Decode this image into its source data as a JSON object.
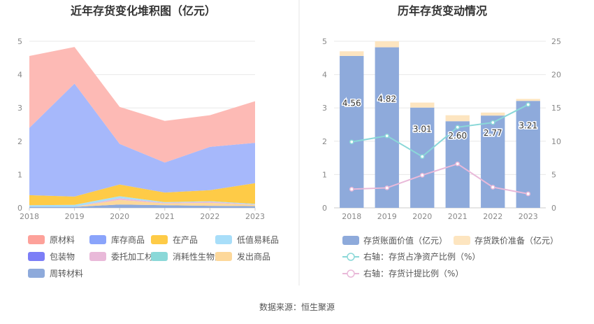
{
  "source_label": "数据来源：恒生聚源",
  "colors": {
    "axis_text": "#888888",
    "grid": "#e8e8e8",
    "divider": "#e5e5e5",
    "title": "#333333",
    "legend_text": "#555555"
  },
  "chart_data": [
    {
      "type": "area",
      "stacked": true,
      "title": "近年存货变化堆积图（亿元）",
      "xlabel": "",
      "ylabel": "",
      "x": [
        "2018",
        "2019",
        "2020",
        "2021",
        "2022",
        "2023"
      ],
      "ylim": [
        0,
        5
      ],
      "yticks": [
        "0",
        "1",
        "2",
        "3",
        "4",
        "5"
      ],
      "grid": true,
      "legend_position": "bottom",
      "series": [
        {
          "name": "周转材料",
          "color": "#8eaadb",
          "values": [
            0.03,
            0.03,
            0.1,
            0.08,
            0.06,
            0.05
          ]
        },
        {
          "name": "发出商品",
          "color": "#fdd89a",
          "values": [
            0.0,
            0.0,
            0.14,
            0.05,
            0.09,
            0.04
          ]
        },
        {
          "name": "消耗性生物资产",
          "color": "#8ad8d8",
          "values": [
            0,
            0,
            0,
            0,
            0,
            0
          ]
        },
        {
          "name": "委托加工材料",
          "color": "#e9b9d9",
          "values": [
            0.0,
            0.0,
            0.05,
            0.02,
            0.03,
            0.01
          ]
        },
        {
          "name": "包装物",
          "color": "#7c7ef7",
          "values": [
            0,
            0,
            0,
            0,
            0,
            0
          ]
        },
        {
          "name": "低值易耗品",
          "color": "#a8def9",
          "values": [
            0.05,
            0.06,
            0.06,
            0.02,
            0.02,
            0.02
          ]
        },
        {
          "name": "在产品",
          "color": "#fecb47",
          "values": [
            0.3,
            0.25,
            0.35,
            0.29,
            0.33,
            0.62
          ]
        },
        {
          "name": "库存商品",
          "color": "#a6b8fb",
          "values": [
            2.02,
            3.39,
            1.22,
            0.9,
            1.3,
            1.21
          ]
        },
        {
          "name": "原材料",
          "color": "#fdbab5",
          "values": [
            2.16,
            1.1,
            1.11,
            1.25,
            0.95,
            1.25
          ]
        }
      ],
      "legend": [
        {
          "name": "原材料",
          "color": "#fda19a"
        },
        {
          "name": "库存商品",
          "color": "#8aa4fb"
        },
        {
          "name": "在产品",
          "color": "#fecb47"
        },
        {
          "name": "低值易耗品",
          "color": "#a8def9"
        },
        {
          "name": "包装物",
          "color": "#7c7ef7"
        },
        {
          "name": "委托加工材料",
          "color": "#e9b9d9"
        },
        {
          "name": "消耗性生物资产",
          "color": "#8ad8d8"
        },
        {
          "name": "发出商品",
          "color": "#fdd89a"
        },
        {
          "name": "周转材料",
          "color": "#8eaadb"
        }
      ]
    },
    {
      "type": "bar",
      "stacked": true,
      "title": "历年存货变动情况",
      "xlabel": "",
      "ylabel": "",
      "categories": [
        "2018",
        "2019",
        "2020",
        "2021",
        "2022",
        "2023"
      ],
      "ylim": [
        0,
        5
      ],
      "yticks": [
        "0",
        "1",
        "2",
        "3",
        "4",
        "5"
      ],
      "y2lim": [
        0,
        25
      ],
      "y2ticks": [
        "0",
        "5",
        "10",
        "15",
        "20",
        "25"
      ],
      "grid": true,
      "legend_position": "bottom",
      "series": [
        {
          "name": "存货账面价值（亿元）",
          "color": "#8eaadb",
          "values": [
            4.56,
            4.82,
            3.01,
            2.6,
            2.77,
            3.21
          ],
          "labels": [
            "4.56",
            "4.82",
            "3.01",
            "2.60",
            "2.77",
            "3.21"
          ]
        },
        {
          "name": "存货跌价准备（亿元）",
          "color": "#fde5c0",
          "values": [
            0.14,
            0.18,
            0.15,
            0.18,
            0.09,
            0.06
          ]
        }
      ],
      "lines": [
        {
          "name": "右轴：存货占净资产比例（%）",
          "color": "#8ad8d8",
          "axis": "right",
          "values": [
            9.9,
            10.8,
            7.7,
            12.1,
            12.8,
            15.5
          ]
        },
        {
          "name": "右轴：存货计提比例（%）",
          "color": "#e9b9d9",
          "axis": "right",
          "values": [
            2.8,
            3.0,
            4.9,
            6.6,
            3.1,
            2.1
          ]
        }
      ]
    }
  ]
}
